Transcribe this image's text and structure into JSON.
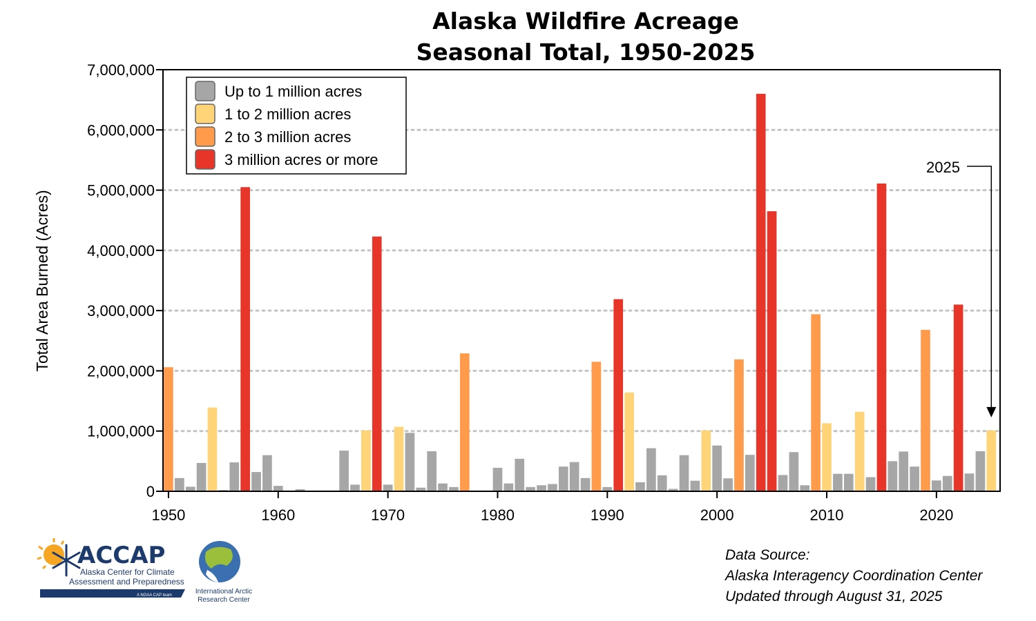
{
  "chart_data": {
    "type": "bar",
    "title": [
      "Alaska Wildfire Acreage",
      "Seasonal Total, 1950-2025"
    ],
    "xlabel": "",
    "ylabel": "Total Area Burned (Acres)",
    "ylim": [
      0,
      7000000
    ],
    "yticks": [
      0,
      1000000,
      2000000,
      3000000,
      4000000,
      5000000,
      6000000,
      7000000
    ],
    "ytick_labels": [
      "0",
      "1,000,000",
      "2,000,000",
      "3,000,000",
      "4,000,000",
      "5,000,000",
      "6,000,000",
      "7,000,000"
    ],
    "xlim": [
      1949.5,
      2025.8
    ],
    "xticks": [
      1950,
      1960,
      1970,
      1980,
      1990,
      2000,
      2010,
      2020
    ],
    "xtick_labels": [
      "1950",
      "1960",
      "1970",
      "1980",
      "1990",
      "2000",
      "2010",
      "2020"
    ],
    "grid": "horizontal dotted",
    "legend_position": "top-left",
    "categories": [
      1950,
      1951,
      1952,
      1953,
      1954,
      1955,
      1956,
      1957,
      1958,
      1959,
      1960,
      1961,
      1962,
      1963,
      1964,
      1965,
      1966,
      1967,
      1968,
      1969,
      1970,
      1971,
      1972,
      1973,
      1974,
      1975,
      1976,
      1977,
      1978,
      1979,
      1980,
      1981,
      1982,
      1983,
      1984,
      1985,
      1986,
      1987,
      1988,
      1989,
      1990,
      1991,
      1992,
      1993,
      1994,
      1995,
      1996,
      1997,
      1998,
      1999,
      2000,
      2001,
      2002,
      2003,
      2004,
      2005,
      2006,
      2007,
      2008,
      2009,
      2010,
      2011,
      2012,
      2013,
      2014,
      2015,
      2016,
      2017,
      2018,
      2019,
      2020,
      2021,
      2022,
      2023,
      2024,
      2025
    ],
    "values": [
      2060000,
      220000,
      75000,
      470000,
      1390000,
      20000,
      480000,
      5050000,
      320000,
      600000,
      90000,
      5000,
      35000,
      5000,
      5000,
      5000,
      675000,
      110000,
      1010000,
      4230000,
      110000,
      1070000,
      970000,
      60000,
      665000,
      130000,
      70000,
      2290000,
      5000,
      5000,
      390000,
      130000,
      540000,
      70000,
      100000,
      120000,
      410000,
      485000,
      220000,
      2150000,
      70000,
      3190000,
      1640000,
      150000,
      715000,
      265000,
      40000,
      600000,
      175000,
      1010000,
      760000,
      215000,
      2190000,
      605000,
      6600000,
      4650000,
      270000,
      650000,
      100000,
      2940000,
      1130000,
      290000,
      290000,
      1320000,
      235000,
      5110000,
      500000,
      660000,
      410000,
      2680000,
      180000,
      255000,
      3100000,
      295000,
      665000,
      1010000
    ],
    "bins": [
      {
        "label": "Up to 1 million acres",
        "min": 0,
        "max": 1000000,
        "color": "#a6a6a6"
      },
      {
        "label": "1 to 2 million acres",
        "min": 1000000,
        "max": 2000000,
        "color": "#ffd478"
      },
      {
        "label": "2 to 3 million acres",
        "min": 2000000,
        "max": 3000000,
        "color": "#ff9b4a"
      },
      {
        "label": "3 million acres or more",
        "min": 3000000,
        "max": null,
        "color": "#e8352a"
      }
    ],
    "annotation": {
      "text": "2025",
      "target_year": 2025,
      "target_value": 1010000
    }
  },
  "footer": {
    "lines": [
      "Data Source:",
      "Alaska Interagency Coordination Center",
      "Updated through August 31, 2025"
    ]
  },
  "logos": {
    "accap": {
      "name": "ACCAP",
      "line1": "Alaska Center for Climate",
      "line2": "Assessment and Preparedness",
      "tag": "A NOAA CAP team"
    },
    "iarc": {
      "line1": "International Arctic",
      "line2": "Research Center"
    }
  },
  "colors": {
    "axis": "#000000",
    "grid": "#c4c4c4",
    "accap_navy": "#1c3a6b",
    "accap_sun": "#f6a623"
  }
}
